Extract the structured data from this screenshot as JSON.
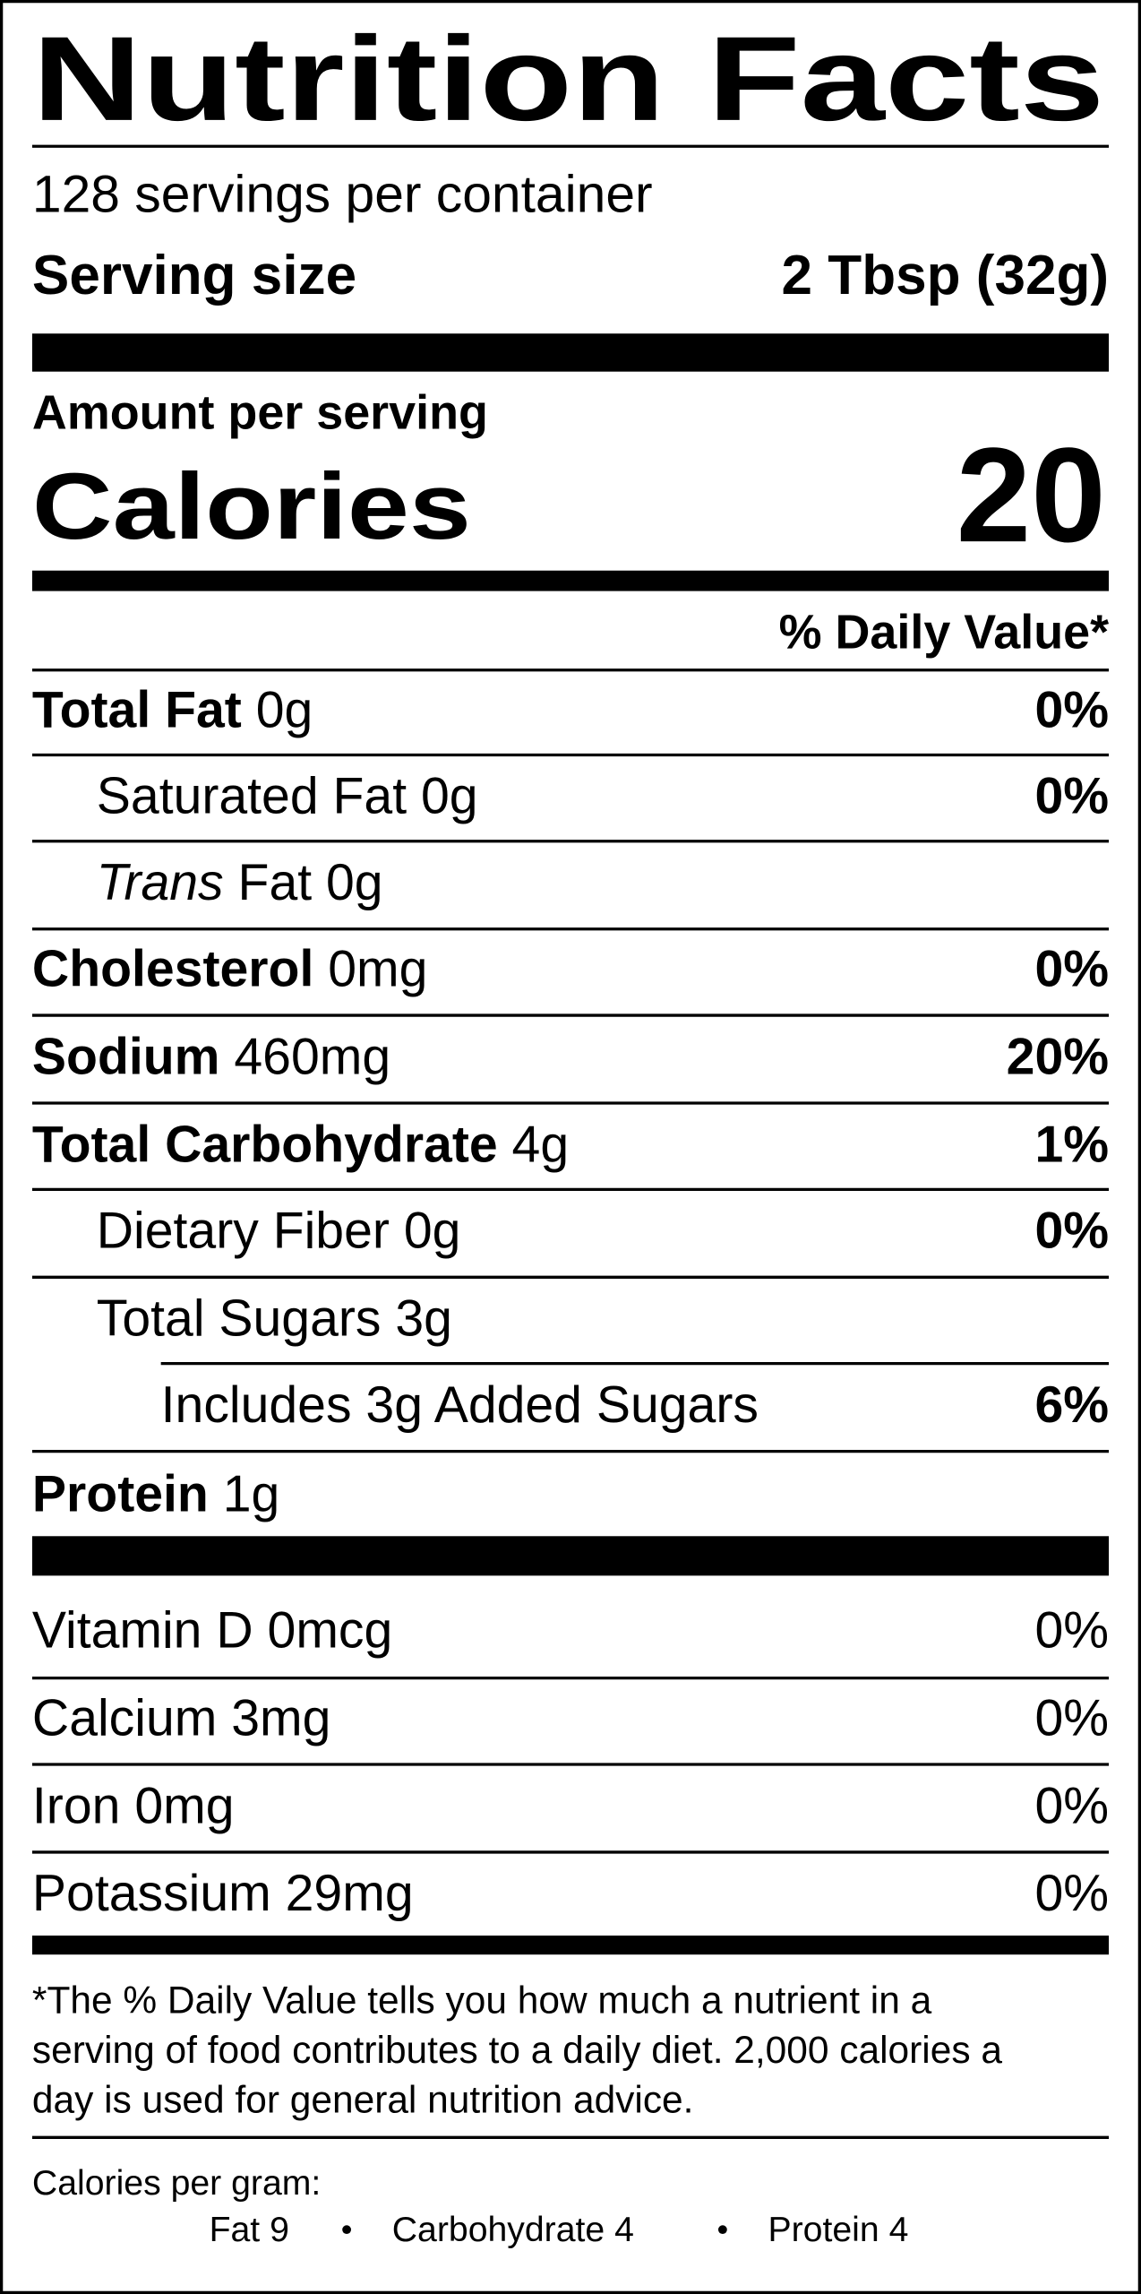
{
  "header": {
    "title": "Nutrition Facts",
    "servings": "128 servings per container",
    "serving_size_label": "Serving size",
    "serving_size": "2 Tbsp (32g)"
  },
  "calories": {
    "amount_label": "Amount per serving",
    "label": "Calories",
    "value": "20"
  },
  "daily_value_header": "% Daily Value*",
  "nutrients": [
    {
      "name": "Total Fat",
      "amount": "0g",
      "dv": "0%"
    },
    {
      "name": "Saturated Fat",
      "amount": "0g",
      "dv": "0%"
    },
    {
      "name_italic": "Trans",
      "name": "Fat",
      "amount": "0g"
    },
    {
      "name": "Cholesterol",
      "amount": "0mg",
      "dv": "0%"
    },
    {
      "name": "Sodium",
      "amount": "460mg",
      "dv": "20%"
    },
    {
      "name": "Total Carbohydrate",
      "amount": "4g",
      "dv": "1%"
    },
    {
      "name": "Dietary Fiber",
      "amount": "0g",
      "dv": "0%"
    },
    {
      "name": "Total Sugars",
      "amount": "3g"
    },
    {
      "name": "Includes 3g Added Sugars",
      "dv": "6%"
    },
    {
      "name": "Protein",
      "amount": "1g"
    }
  ],
  "vitamins": [
    {
      "name": "Vitamin D",
      "amount": "0mcg",
      "dv": "0%"
    },
    {
      "name": "Calcium",
      "amount": "3mg",
      "dv": "0%"
    },
    {
      "name": "Iron",
      "amount": "0mg",
      "dv": "0%"
    },
    {
      "name": "Potassium",
      "amount": "29mg",
      "dv": "0%"
    }
  ],
  "footnote": [
    "*The % Daily Value tells you how much a nutrient in a",
    "serving of food contributes to a daily diet. 2,000 calories a",
    "day is used for general nutrition advice."
  ],
  "calories_per_gram": {
    "label": "Calories per gram:",
    "items": [
      "Fat 9",
      "Carbohydrate 4",
      "Protein 4"
    ]
  }
}
